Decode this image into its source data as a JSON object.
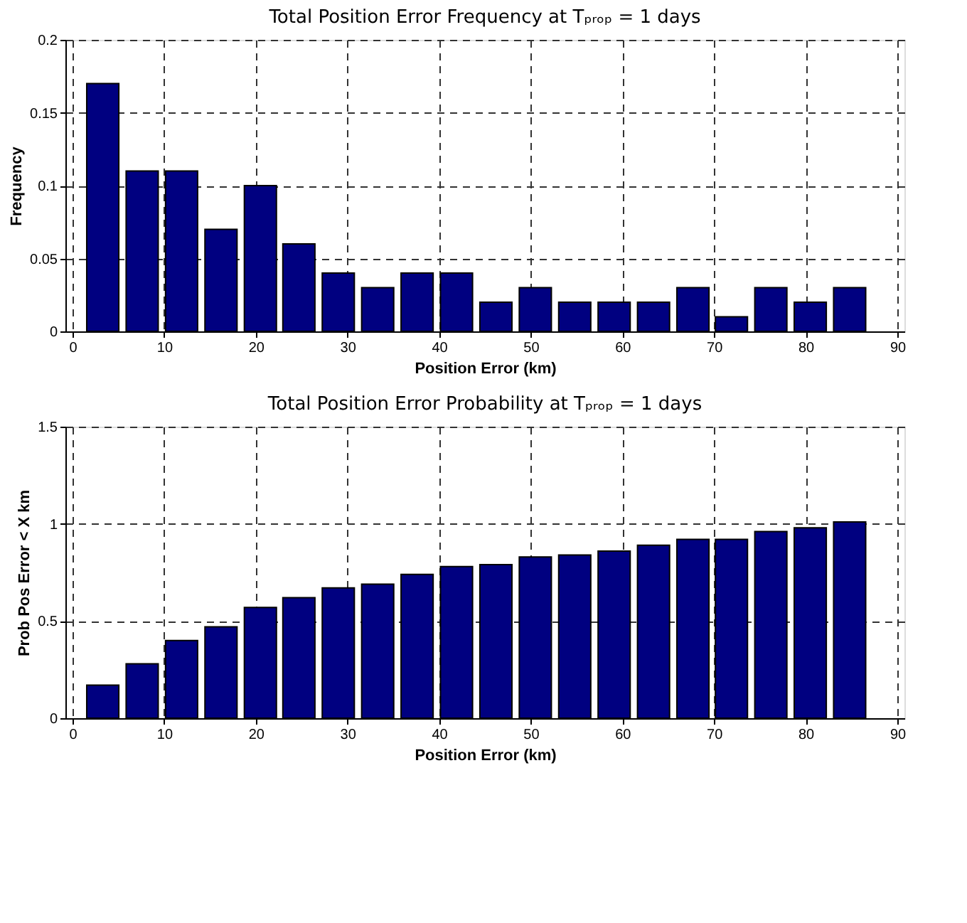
{
  "chart_data": [
    {
      "type": "bar",
      "title": "Total Position Error Frequency at Tₚᵣₒₚ = 1 days",
      "xlabel": "Position Error (km)",
      "ylabel": "Frequency",
      "x": [
        3.3,
        7.6,
        11.9,
        16.2,
        20.5,
        24.7,
        29.0,
        33.3,
        37.6,
        41.9,
        46.2,
        50.5,
        54.8,
        59.1,
        63.4,
        67.7,
        71.9,
        76.2,
        80.5,
        84.8
      ],
      "values": [
        0.17,
        0.11,
        0.11,
        0.07,
        0.1,
        0.06,
        0.04,
        0.03,
        0.04,
        0.04,
        0.02,
        0.03,
        0.02,
        0.02,
        0.02,
        0.03,
        0.01,
        0.03,
        0.02,
        0.03
      ],
      "color": "#000080",
      "xlim": [
        0,
        90
      ],
      "ylim": [
        0,
        0.2
      ],
      "xticks": [
        0,
        10,
        20,
        30,
        40,
        50,
        60,
        70,
        80,
        90
      ],
      "yticks": [
        0,
        0.05,
        0.1,
        0.15,
        0.2
      ],
      "grid": true
    },
    {
      "type": "bar",
      "title": "Total Position Error Probability at Tₚᵣₒₚ = 1 days",
      "xlabel": "Position Error (km)",
      "ylabel": "Prob Pos Error < X km",
      "x": [
        3.3,
        7.6,
        11.9,
        16.2,
        20.5,
        24.7,
        29.0,
        33.3,
        37.6,
        41.9,
        46.2,
        50.5,
        54.8,
        59.1,
        63.4,
        67.7,
        71.9,
        76.2,
        80.5,
        84.8
      ],
      "values": [
        0.17,
        0.28,
        0.4,
        0.47,
        0.57,
        0.62,
        0.67,
        0.69,
        0.74,
        0.78,
        0.79,
        0.83,
        0.84,
        0.86,
        0.89,
        0.92,
        0.92,
        0.96,
        0.98,
        1.01
      ],
      "color": "#000080",
      "xlim": [
        0,
        90
      ],
      "ylim": [
        0,
        1.5
      ],
      "xticks": [
        0,
        10,
        20,
        30,
        40,
        50,
        60,
        70,
        80,
        90
      ],
      "yticks": [
        0,
        0.5,
        1,
        1.5
      ],
      "grid": true
    }
  ]
}
